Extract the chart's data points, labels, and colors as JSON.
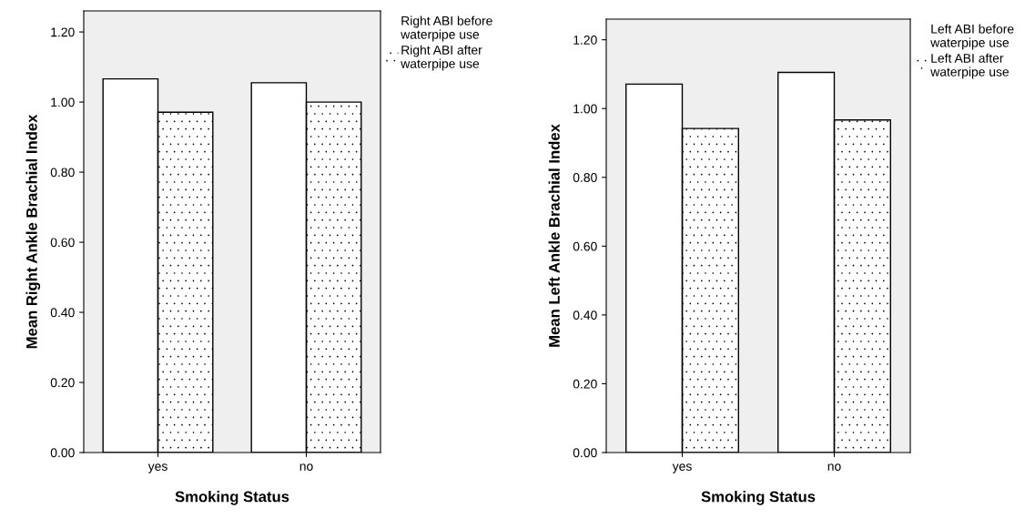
{
  "chart_data": [
    {
      "type": "bar",
      "xlabel": "Smoking Status",
      "ylabel": "Mean Right Ankle Brachial Index",
      "categories": [
        "yes",
        "no"
      ],
      "ylim": [
        0,
        1.26
      ],
      "yticks": [
        {
          "value": 0,
          "label": "0.00"
        },
        {
          "value": 0.2,
          "label": "0.20"
        },
        {
          "value": 0.4,
          "label": "0.40"
        },
        {
          "value": 0.6,
          "label": "0.60"
        },
        {
          "value": 0.8,
          "label": "0.80"
        },
        {
          "value": 1.0,
          "label": "1.00"
        },
        {
          "value": 1.2,
          "label": "1.20"
        }
      ],
      "grid": false,
      "legend": "top right",
      "series": [
        {
          "name": "Right ABI before waterpipe use",
          "color": "#ffffff",
          "values": [
            1.066,
            1.055
          ]
        },
        {
          "name": "Right ABI after waterpipe use",
          "color": "#ffffff",
          "values": [
            0.971,
            1.0
          ]
        }
      ]
    },
    {
      "type": "bar",
      "xlabel": "Smoking Status",
      "ylabel": "Mean Left Ankle Brachial Index",
      "categories": [
        "yes",
        "no"
      ],
      "ylim": [
        0,
        1.26
      ],
      "yticks": [
        {
          "value": 0,
          "label": "0.00"
        },
        {
          "value": 0.2,
          "label": "0.20"
        },
        {
          "value": 0.4,
          "label": "0.40"
        },
        {
          "value": 0.6,
          "label": "0.60"
        },
        {
          "value": 0.8,
          "label": "0.80"
        },
        {
          "value": 1.0,
          "label": "1.00"
        },
        {
          "value": 1.2,
          "label": "1.20"
        }
      ],
      "grid": false,
      "legend": "top right",
      "series": [
        {
          "name": "Left ABI before waterpipe use",
          "color": "#ffffff",
          "values": [
            1.071,
            1.105
          ]
        },
        {
          "name": "Left ABI after waterpipe use",
          "color": "#ffffff",
          "values": [
            0.942,
            0.967
          ]
        }
      ]
    }
  ]
}
